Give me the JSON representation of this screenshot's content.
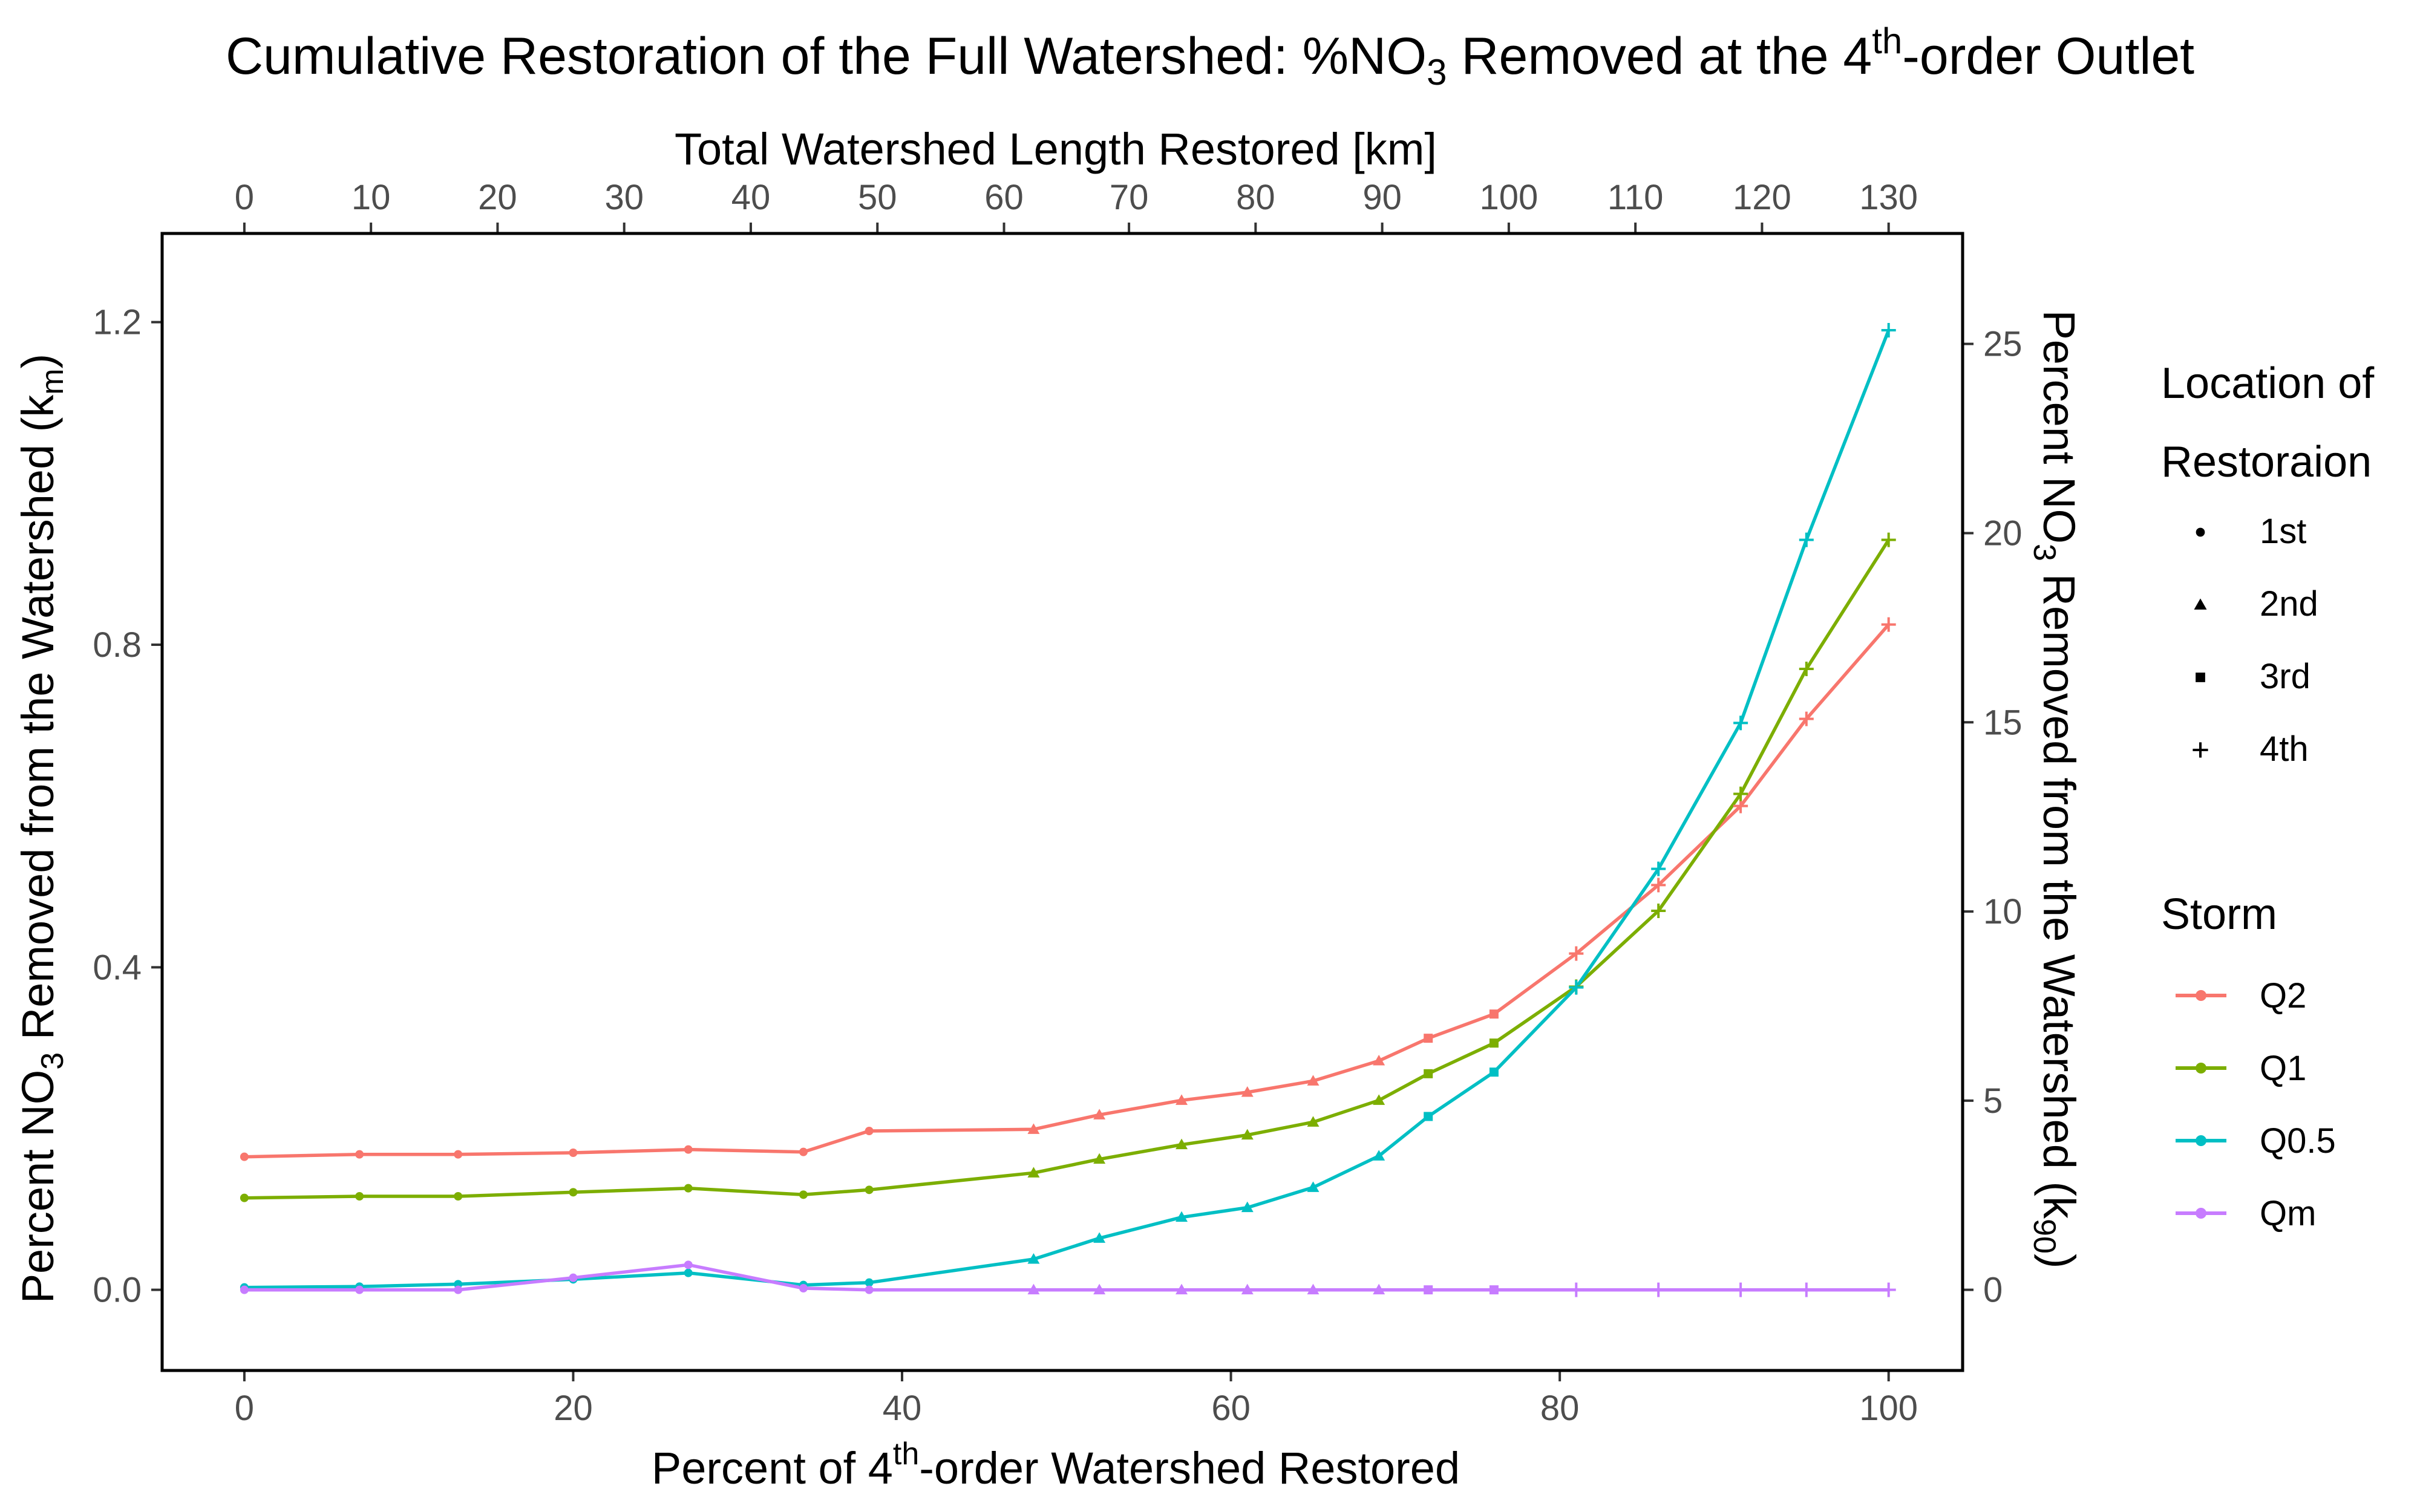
{
  "chart_data": {
    "type": "line",
    "title": {
      "part1": "Cumulative Restoration of the Full Watershed: %NO",
      "sub": "3",
      "part2": " Removed at the 4",
      "sup": "th",
      "part3": "-order Outlet"
    },
    "x_axis": {
      "label_pre": "Percent of 4",
      "label_sup": "th",
      "label_post": "-order Watershed Restored",
      "range": [
        -5,
        104.5
      ],
      "ticks": [
        0,
        20,
        40,
        60,
        80,
        100
      ]
    },
    "x_top_axis": {
      "label": "Total Watershed Length Restored [km]",
      "ticks": [
        {
          "pos": 0,
          "label": "0"
        },
        {
          "pos": 7.7,
          "label": "10"
        },
        {
          "pos": 15.4,
          "label": "20"
        },
        {
          "pos": 23.1,
          "label": "30"
        },
        {
          "pos": 30.8,
          "label": "40"
        },
        {
          "pos": 38.5,
          "label": "50"
        },
        {
          "pos": 46.2,
          "label": "60"
        },
        {
          "pos": 53.8,
          "label": "70"
        },
        {
          "pos": 61.5,
          "label": "80"
        },
        {
          "pos": 69.2,
          "label": "90"
        },
        {
          "pos": 76.9,
          "label": "100"
        },
        {
          "pos": 84.6,
          "label": "110"
        },
        {
          "pos": 92.3,
          "label": "120"
        },
        {
          "pos": 100,
          "label": "130"
        }
      ]
    },
    "y_axis": {
      "label_pre": "Percent NO",
      "label_sub1": "3",
      "label_mid": " Removed from the Watershed (k",
      "label_sub2": "m",
      "label_post": ")",
      "range": [
        -0.1,
        1.31
      ],
      "ticks": [
        0.0,
        0.4,
        0.8,
        1.2
      ],
      "tick_labels": [
        "0.0",
        "0.4",
        "0.8",
        "1.2"
      ]
    },
    "y_right_axis": {
      "label_pre": "Percent NO",
      "label_sub1": "3",
      "label_mid": " Removed from the Watershed (k",
      "label_sub2": "90",
      "label_post": ")",
      "ticks": [
        {
          "pos": 0,
          "label": "0"
        },
        {
          "pos": 0.2346,
          "label": "5"
        },
        {
          "pos": 0.4692,
          "label": "10"
        },
        {
          "pos": 0.7038,
          "label": "15"
        },
        {
          "pos": 0.9384,
          "label": "20"
        },
        {
          "pos": 1.173,
          "label": "25"
        }
      ]
    },
    "x": [
      0,
      7,
      13,
      20,
      27,
      34,
      38,
      48,
      52,
      57,
      61,
      65,
      69,
      72,
      76,
      81,
      86,
      91,
      95,
      100
    ],
    "location_of_restoration": [
      "1st",
      "1st",
      "1st",
      "1st",
      "1st",
      "1st",
      "1st",
      "2nd",
      "2nd",
      "2nd",
      "2nd",
      "2nd",
      "2nd",
      "3rd",
      "3rd",
      "4th",
      "4th",
      "4th",
      "4th",
      "4th"
    ],
    "series": [
      {
        "name": "Q2",
        "color": "#F8766D",
        "values": [
          0.165,
          0.168,
          0.168,
          0.17,
          0.174,
          0.171,
          0.197,
          0.199,
          0.217,
          0.235,
          0.245,
          0.259,
          0.284,
          0.312,
          0.342,
          0.417,
          0.502,
          0.6,
          0.708,
          0.825
        ]
      },
      {
        "name": "Q1",
        "color": "#7CAE00",
        "values": [
          0.114,
          0.116,
          0.116,
          0.121,
          0.126,
          0.118,
          0.124,
          0.145,
          0.162,
          0.18,
          0.192,
          0.208,
          0.235,
          0.268,
          0.306,
          0.376,
          0.47,
          0.615,
          0.77,
          0.93
        ]
      },
      {
        "name": "Q0.5",
        "color": "#00BFC4",
        "values": [
          0.003,
          0.004,
          0.007,
          0.013,
          0.021,
          0.006,
          0.009,
          0.038,
          0.064,
          0.09,
          0.102,
          0.127,
          0.166,
          0.215,
          0.27,
          0.375,
          0.522,
          0.703,
          0.93,
          1.19
        ]
      },
      {
        "name": "Qm",
        "color": "#C77CFF",
        "values": [
          0.0,
          0.0,
          0.0,
          0.015,
          0.031,
          0.002,
          0.0,
          0.0,
          0.0,
          0.0,
          0.0,
          0.0,
          0.0,
          0.0,
          0.0,
          0.0,
          0.0,
          0.0,
          0.0,
          0.0
        ]
      }
    ],
    "legend": {
      "placement": "right",
      "shape_title_line1": "Location of",
      "shape_title_line2": "Restoraion",
      "shape_entries": [
        {
          "label": "1st",
          "shape": "circle"
        },
        {
          "label": "2nd",
          "shape": "triangle"
        },
        {
          "label": "3rd",
          "shape": "square"
        },
        {
          "label": "4th",
          "shape": "plus"
        }
      ],
      "color_title": "Storm",
      "color_entries": [
        "Q2",
        "Q1",
        "Q0.5",
        "Qm"
      ]
    },
    "grid": false
  }
}
